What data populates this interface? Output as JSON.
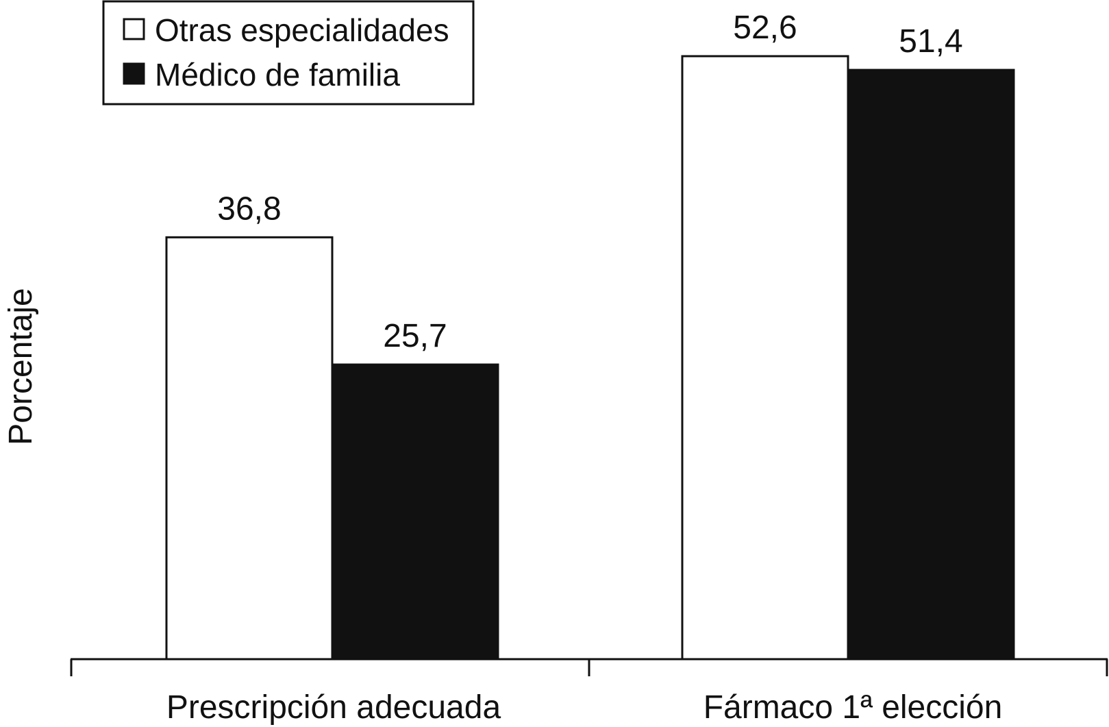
{
  "chart_data": {
    "type": "bar",
    "categories": [
      "Prescripción adecuada",
      "Fármaco 1ª elección"
    ],
    "series": [
      {
        "name": "Otras especialidades",
        "values": [
          36.8,
          52.6
        ],
        "labels": [
          "36,8",
          "52,6"
        ],
        "color": "#ffffff"
      },
      {
        "name": "Médico de familia",
        "values": [
          25.7,
          51.4
        ],
        "labels": [
          "25,7",
          "51,4"
        ],
        "color": "#111111"
      }
    ],
    "title": "",
    "xlabel": "",
    "ylabel": "Porcentaje",
    "ylim": [
      0,
      57.5
    ],
    "grid": false,
    "legend_position": "top-left"
  }
}
